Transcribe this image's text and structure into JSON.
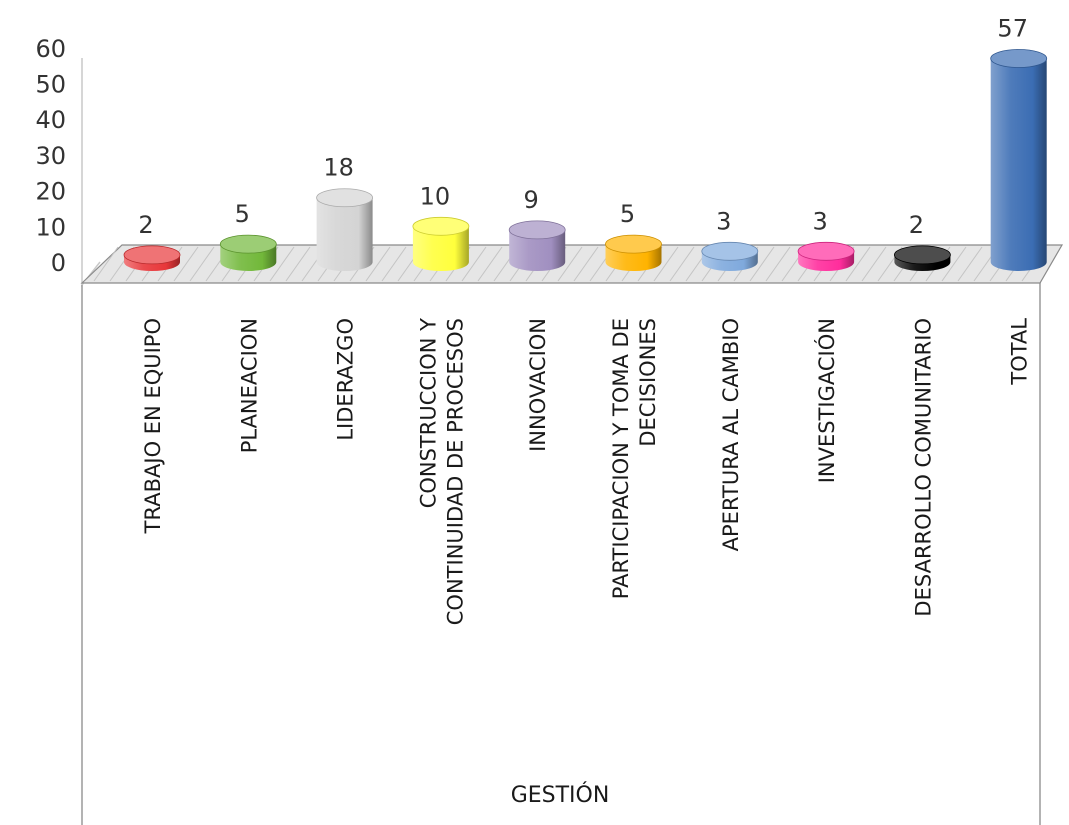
{
  "chart_data": {
    "type": "bar",
    "title": "",
    "xlabel": "GESTIÓN",
    "ylabel": "",
    "ylim": [
      0,
      60
    ],
    "yticks": [
      0,
      10,
      20,
      30,
      40,
      50,
      60
    ],
    "grid": false,
    "legend": "none",
    "style": "3d-cylinder",
    "categories": [
      [
        "TRABAJO EN EQUIPO"
      ],
      [
        "PLANEACION"
      ],
      [
        "LIDERAZGO"
      ],
      [
        "CONSTRUCCION Y",
        "CONTINUIDAD DE PROCESOS"
      ],
      [
        "INNOVACION"
      ],
      [
        "PARTICIPACION Y TOMA DE",
        "DECISIONES"
      ],
      [
        "APERTURA AL CAMBIO"
      ],
      [
        "INVESTIGACIÓN"
      ],
      [
        "DESARROLLO COMUNITARIO"
      ],
      [
        "TOTAL"
      ]
    ],
    "values": [
      2,
      5,
      18,
      10,
      9,
      5,
      3,
      3,
      2,
      57
    ],
    "colors": [
      "#e8373a",
      "#72b83a",
      "#d4d4d4",
      "#ffff3c",
      "#a08fc0",
      "#ffb300",
      "#7fa9dc",
      "#ff2d9c",
      "#000000",
      "#3b6db3"
    ]
  }
}
